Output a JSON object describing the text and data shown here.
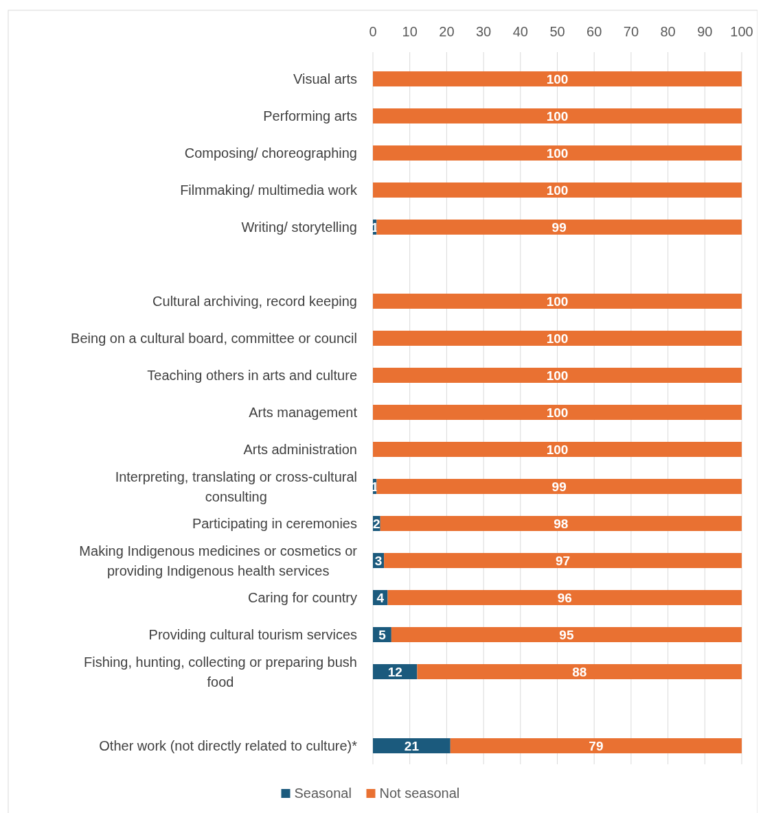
{
  "chart_data": {
    "type": "bar",
    "orientation": "horizontal",
    "stacked": true,
    "categories": [
      "Visual arts",
      "Performing arts",
      "Composing/ choreographing",
      "Filmmaking/ multimedia work",
      "Writing/ storytelling",
      null,
      "Cultural archiving, record keeping",
      "Being on a cultural board, committee or council",
      "Teaching others in arts and culture",
      "Arts management",
      "Arts administration",
      "Interpreting, translating or cross-cultural consulting",
      "Participating in ceremonies",
      "Making Indigenous medicines or cosmetics or providing Indigenous health services",
      "Caring for country",
      "Providing cultural tourism services",
      "Fishing, hunting, collecting or preparing bush food",
      null,
      "Other work (not directly related to culture)*"
    ],
    "series": [
      {
        "name": "Seasonal",
        "color": "#1b5a7d",
        "values": [
          0,
          0,
          0,
          0,
          1,
          null,
          0,
          0,
          0,
          0,
          0,
          1,
          2,
          3,
          4,
          5,
          12,
          null,
          21
        ],
        "value_labels": [
          null,
          null,
          null,
          null,
          "1",
          null,
          null,
          null,
          null,
          null,
          null,
          "1",
          "2",
          "3",
          "4",
          "5",
          "12",
          null,
          "21"
        ]
      },
      {
        "name": "Not seasonal",
        "color": "#e97132",
        "values": [
          100,
          100,
          100,
          100,
          99,
          null,
          100,
          100,
          100,
          100,
          100,
          99,
          98,
          97,
          96,
          95,
          88,
          null,
          79
        ],
        "value_labels": [
          "100",
          "100",
          "100",
          "100",
          "99",
          null,
          "100",
          "100",
          "100",
          "100",
          "100",
          "99",
          "98",
          "97",
          "96",
          "95",
          "88",
          null,
          "79"
        ]
      }
    ],
    "xlim": [
      0,
      100
    ],
    "xticks": [
      0,
      10,
      20,
      30,
      40,
      50,
      60,
      70,
      80,
      90,
      100
    ],
    "grid": "x",
    "legend": "bottom"
  }
}
